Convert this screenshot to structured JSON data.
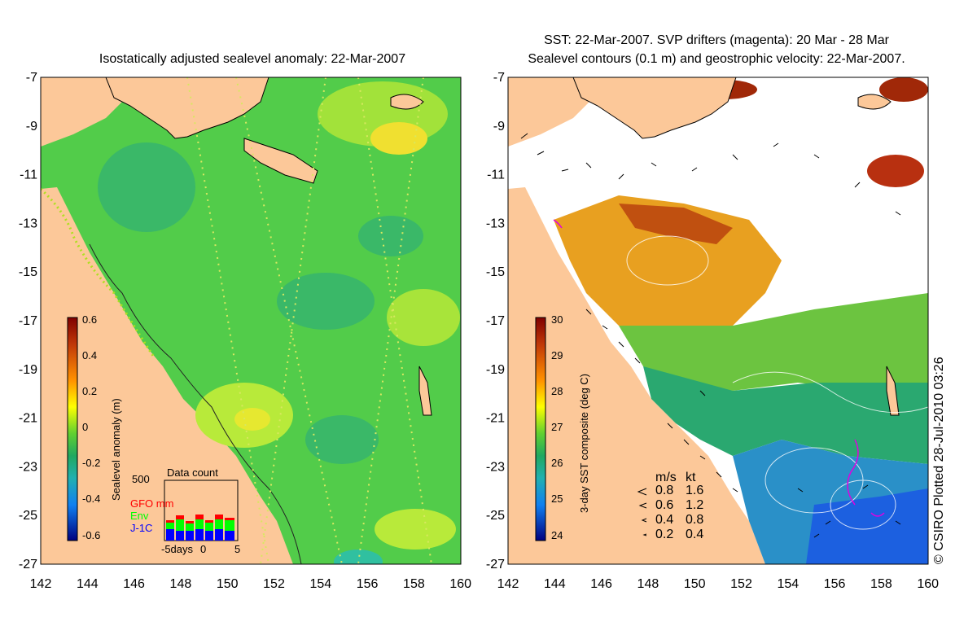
{
  "left_panel": {
    "title": "Isostatically adjusted sealevel anomaly: 22-Mar-2007",
    "colorbar_label": "Sealevel anomaly (m)",
    "colorbar_ticks": [
      "0.6",
      "0.4",
      "0.2",
      "0",
      "-0.2",
      "-0.4",
      "-0.6"
    ],
    "inset": {
      "title": "Data count",
      "max_label": "500",
      "legend": [
        {
          "label": "GFO mm",
          "color": "#ff0000"
        },
        {
          "label": "Env",
          "color": "#00ff00"
        },
        {
          "label": "J-1C",
          "color": "#0000ff"
        }
      ],
      "x_labels": {
        "start": "-5days",
        "mid": "0",
        "end": "5"
      }
    }
  },
  "right_panel": {
    "title_line1": "SST: 22-Mar-2007. SVP drifters (magenta): 20 Mar - 28 Mar",
    "title_line2": "Sealevel contours (0.1 m) and geostrophic velocity: 22-Mar-2007.",
    "colorbar_label": "3-day SST composite (deg C)",
    "colorbar_ticks": [
      "30",
      "29",
      "28",
      "27",
      "26",
      "25",
      "24"
    ],
    "speed_legend": {
      "header_ms": "m/s",
      "header_kt": "kt",
      "rows": [
        {
          "ms": "0.8",
          "kt": "1.6"
        },
        {
          "ms": "0.6",
          "kt": "1.2"
        },
        {
          "ms": "0.4",
          "kt": "0.8"
        },
        {
          "ms": "0.2",
          "kt": "0.4"
        }
      ]
    }
  },
  "axes": {
    "y_ticks": [
      "-7",
      "-9",
      "-11",
      "-13",
      "-15",
      "-17",
      "-19",
      "-21",
      "-23",
      "-25",
      "-27"
    ],
    "x_ticks": [
      "142",
      "144",
      "146",
      "148",
      "150",
      "152",
      "154",
      "156",
      "158",
      "160"
    ]
  },
  "credit": "© CSIRO Plotted 28-Jul-2010 03:26",
  "colors": {
    "land": "#fcc899",
    "ocean_mid": "#4cc94c",
    "ocean_light": "#9ee63c",
    "ocean_dark": "#2aa860",
    "sst_warm": "#e09018",
    "sst_hot": "#a02a08",
    "sst_cool": "#2a9a80",
    "sst_cold": "#2070d8",
    "cloud": "#ffffff"
  }
}
